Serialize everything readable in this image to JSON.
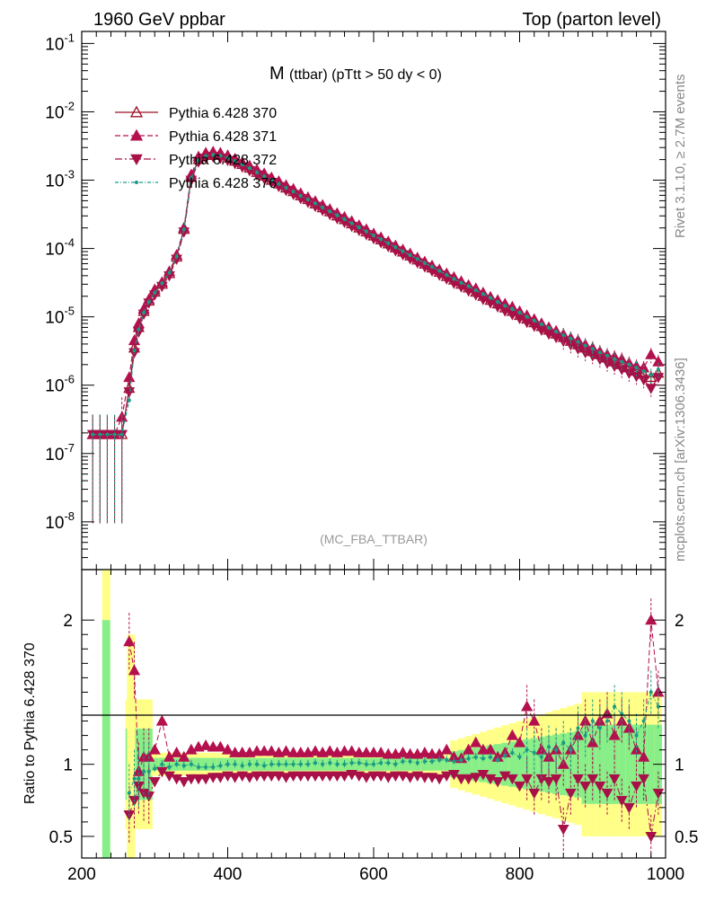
{
  "header": {
    "left": "1960 GeV ppbar",
    "right": "Top (parton level)"
  },
  "side": {
    "rivet": "Rivet 3.1.10, ≥ 2.7M events",
    "mcplots": "mcplots.cern.ch [arXiv:1306.3436]"
  },
  "plot_title": {
    "main": "M",
    "sub": "(ttbar) (pTtt > 50 dy < 0)"
  },
  "watermark": "(MC_FBA_TTBAR)",
  "ratio_ylabel": "Ratio to Pythia 6.428 370",
  "colors": {
    "s370": "#9b1025",
    "s371": "#b4104e",
    "s372": "#a81048",
    "s376": "#1a9a86",
    "band_yellow": "#ffff88",
    "band_green": "#88ee88"
  },
  "chart_data": [
    {
      "type": "line",
      "yscale": "log",
      "xlim": [
        200,
        1000
      ],
      "ylim": [
        2e-09,
        0.15
      ],
      "yticks": [
        "10^-8",
        "10^-7",
        "10^-6",
        "10^-5",
        "10^-4",
        "10^-3",
        "10^-2",
        "10^-1"
      ],
      "x": [
        215,
        225,
        235,
        245,
        255,
        265,
        272,
        278,
        285,
        292,
        300,
        310,
        320,
        330,
        340,
        350,
        360,
        370,
        380,
        390,
        400,
        410,
        420,
        430,
        440,
        450,
        460,
        470,
        480,
        490,
        500,
        510,
        520,
        530,
        540,
        550,
        560,
        570,
        580,
        590,
        600,
        610,
        620,
        630,
        640,
        650,
        660,
        670,
        680,
        690,
        700,
        710,
        720,
        730,
        740,
        750,
        760,
        770,
        780,
        790,
        800,
        810,
        820,
        830,
        840,
        850,
        860,
        870,
        880,
        890,
        900,
        910,
        920,
        930,
        940,
        950,
        960,
        970,
        980,
        990
      ],
      "series": [
        {
          "name": "Pythia 6.428 370",
          "values": [
            1.9e-07,
            1.9e-07,
            1.9e-07,
            1.9e-07,
            1.9e-07,
            9e-07,
            3.5e-06,
            7e-06,
            1.2e-05,
            1.7e-05,
            2.3e-05,
            3e-05,
            4.3e-05,
            7.5e-05,
            0.00019,
            0.0011,
            0.002,
            0.0023,
            0.0024,
            0.0023,
            0.0021,
            0.0019,
            0.0017,
            0.0015,
            0.0013,
            0.00115,
            0.001,
            0.00088,
            0.00077,
            0.00068,
            0.00059,
            0.00052,
            0.00045,
            0.000395,
            0.000345,
            0.0003,
            0.000265,
            0.00023,
            0.0002,
            0.000175,
            0.000153,
            0.000134,
            0.000117,
            0.000102,
            8.9e-05,
            7.8e-05,
            6.8e-05,
            5.9e-05,
            5.2e-05,
            4.5e-05,
            3.9e-05,
            3.45e-05,
            3e-05,
            2.65e-05,
            2.3e-05,
            2e-05,
            1.75e-05,
            1.55e-05,
            1.35e-05,
            1.2e-05,
            1.05e-05,
            9.3e-06,
            8.2e-06,
            7.2e-06,
            6.4e-06,
            5.6e-06,
            5e-06,
            4.4e-06,
            3.9e-06,
            3.5e-06,
            3.1e-06,
            2.8e-06,
            2.5e-06,
            2.2e-06,
            2e-06,
            1.8e-06,
            1.6e-06,
            1.45e-06,
            1.3e-06,
            1.5e-06
          ]
        },
        {
          "name": "Pythia 6.428 371",
          "values": [
            1.9e-07,
            1.9e-07,
            1.9e-07,
            1.9e-07,
            3.4e-07,
            1.3e-06,
            4.5e-06,
            8e-06,
            1.3e-05,
            1.8e-05,
            2.5e-05,
            3.2e-05,
            4.6e-05,
            8e-05,
            0.0002,
            0.0012,
            0.0022,
            0.0025,
            0.0026,
            0.0025,
            0.0023,
            0.00205,
            0.00183,
            0.00162,
            0.00142,
            0.00125,
            0.00109,
            0.00096,
            0.00084,
            0.00074,
            0.00064,
            0.00056,
            0.00049,
            0.00043,
            0.000375,
            0.000327,
            0.000288,
            0.00025,
            0.000218,
            0.00019,
            0.000165,
            0.000145,
            0.000126,
            0.00011,
            9.6e-05,
            8.4e-05,
            7.3e-05,
            6.4e-05,
            5.6e-05,
            4.9e-05,
            4.3e-05,
            3.8e-05,
            3.3e-05,
            2.9e-05,
            2.6e-05,
            2.25e-05,
            1.95e-05,
            1.75e-05,
            1.55e-05,
            1.4e-05,
            1.2e-05,
            1.05e-05,
            9.2e-06,
            8e-06,
            7e-06,
            6.2e-06,
            5.5e-06,
            4.9e-06,
            4.5e-06,
            3.9e-06,
            3.5e-06,
            3.1e-06,
            2.8e-06,
            2.6e-06,
            2.4e-06,
            2.1e-06,
            1.9e-06,
            1.8e-06,
            2.8e-06,
            2.2e-06
          ]
        },
        {
          "name": "Pythia 6.428 372",
          "values": [
            1.9e-07,
            1.9e-07,
            1.9e-07,
            1.9e-07,
            1.9e-07,
            8e-07,
            3e-06,
            6e-06,
            1.1e-05,
            1.6e-05,
            2.1e-05,
            2.8e-05,
            4e-05,
            7e-05,
            0.000175,
            0.001,
            0.00185,
            0.0021,
            0.0022,
            0.0021,
            0.00195,
            0.00175,
            0.00156,
            0.00138,
            0.0012,
            0.00106,
            0.00093,
            0.00081,
            0.00071,
            0.00062,
            0.00054,
            0.000475,
            0.000415,
            0.000362,
            0.000315,
            0.000275,
            0.000242,
            0.000211,
            0.000184,
            0.00016,
            0.00014,
            0.000122,
            0.000107,
            9.3e-05,
            8.1e-05,
            7.1e-05,
            6.2e-05,
            5.4e-05,
            4.7e-05,
            4.1e-05,
            3.6e-05,
            3.1e-05,
            2.75e-05,
            2.4e-05,
            2.1e-05,
            1.8e-05,
            1.6e-05,
            1.4e-05,
            1.22e-05,
            1.08e-05,
            9.5e-06,
            8.3e-06,
            7.3e-06,
            6.4e-06,
            5.6e-06,
            5e-06,
            4.4e-06,
            3.9e-06,
            3.4e-06,
            3e-06,
            2.7e-06,
            2.4e-06,
            2.1e-06,
            1.9e-06,
            1.7e-06,
            1.5e-06,
            1.35e-06,
            1.2e-06,
            9e-07,
            1.3e-06
          ]
        },
        {
          "name": "Pythia 6.428 376",
          "values": [
            1.9e-07,
            1.9e-07,
            1.9e-07,
            1.9e-07,
            1.9e-07,
            6e-07,
            3.2e-06,
            6.5e-06,
            1.15e-05,
            1.65e-05,
            2.25e-05,
            3.1e-05,
            4.4e-05,
            7.6e-05,
            0.00019,
            0.00108,
            0.00195,
            0.00225,
            0.00235,
            0.00228,
            0.00212,
            0.0019,
            0.0017,
            0.0015,
            0.0013,
            0.00114,
            0.001,
            0.00088,
            0.00077,
            0.00068,
            0.00059,
            0.00052,
            0.000455,
            0.000398,
            0.000348,
            0.000305,
            0.000268,
            0.000233,
            0.000203,
            0.000177,
            0.000155,
            0.000136,
            0.000119,
            0.000104,
            9.1e-05,
            8e-05,
            7e-05,
            6.1e-05,
            5.4e-05,
            4.7e-05,
            4.1e-05,
            3.6e-05,
            3.15e-05,
            2.8e-05,
            2.45e-05,
            2.15e-05,
            1.9e-05,
            1.65e-05,
            1.45e-05,
            1.3e-05,
            1.15e-05,
            1e-05,
            8.8e-06,
            7.8e-06,
            6.9e-06,
            6.1e-06,
            5.4e-06,
            4.8e-06,
            4.3e-06,
            3.8e-06,
            3.4e-06,
            3e-06,
            2.7e-06,
            2.4e-06,
            2.2e-06,
            2e-06,
            1.8e-06,
            1.6e-06,
            1.4e-06,
            1.7e-06
          ]
        }
      ]
    },
    {
      "type": "line",
      "xlim": [
        200,
        1000
      ],
      "ylim": [
        0.35,
        2.35
      ],
      "xticks": [
        "200",
        "400",
        "600",
        "800",
        "1000"
      ],
      "yticks": [
        "0.5",
        "1",
        "2"
      ],
      "ylabel": "Ratio to Pythia 6.428 370",
      "x": [
        265,
        272,
        278,
        285,
        292,
        300,
        310,
        320,
        330,
        340,
        350,
        360,
        370,
        380,
        390,
        400,
        410,
        420,
        430,
        440,
        450,
        460,
        470,
        480,
        490,
        500,
        510,
        520,
        530,
        540,
        550,
        560,
        570,
        580,
        590,
        600,
        610,
        620,
        630,
        640,
        650,
        660,
        670,
        680,
        690,
        700,
        710,
        720,
        730,
        740,
        750,
        760,
        770,
        780,
        790,
        800,
        810,
        820,
        830,
        840,
        850,
        860,
        870,
        880,
        890,
        900,
        910,
        920,
        930,
        940,
        950,
        960,
        970,
        980,
        990
      ],
      "series": [
        {
          "name": "Pythia 6.428 371",
          "values": [
            1.85,
            1.65,
            0.95,
            1.05,
            1.05,
            1.1,
            1.3,
            1.05,
            1.08,
            1.05,
            1.1,
            1.12,
            1.13,
            1.12,
            1.12,
            1.1,
            1.08,
            1.08,
            1.08,
            1.09,
            1.09,
            1.09,
            1.08,
            1.09,
            1.08,
            1.08,
            1.08,
            1.09,
            1.08,
            1.09,
            1.08,
            1.09,
            1.09,
            1.08,
            1.08,
            1.08,
            1.08,
            1.07,
            1.07,
            1.08,
            1.07,
            1.07,
            1.08,
            1.07,
            1.07,
            1.1,
            1.05,
            1.04,
            1.1,
            1.15,
            1.1,
            1.1,
            1.05,
            1.08,
            1.2,
            1.15,
            1.4,
            1.3,
            1.1,
            1.05,
            1.1,
            1.0,
            1.1,
            1.2,
            1.3,
            1.15,
            1.3,
            1.35,
            1.2,
            1.3,
            1.25,
            1.1,
            1.05,
            2.0,
            1.5
          ]
        },
        {
          "name": "Pythia 6.428 372",
          "values": [
            0.65,
            0.75,
            0.85,
            0.8,
            0.78,
            0.88,
            0.95,
            0.92,
            0.9,
            0.88,
            0.9,
            0.9,
            0.9,
            0.91,
            0.91,
            0.92,
            0.91,
            0.92,
            0.91,
            0.92,
            0.92,
            0.92,
            0.92,
            0.91,
            0.92,
            0.92,
            0.92,
            0.92,
            0.92,
            0.92,
            0.92,
            0.92,
            0.93,
            0.92,
            0.91,
            0.92,
            0.92,
            0.91,
            0.92,
            0.92,
            0.91,
            0.92,
            0.91,
            0.91,
            0.9,
            0.92,
            0.93,
            0.9,
            0.9,
            0.91,
            0.93,
            0.9,
            0.88,
            0.92,
            0.9,
            0.85,
            0.9,
            0.8,
            0.9,
            0.88,
            0.9,
            0.55,
            0.8,
            0.9,
            0.85,
            0.9,
            0.85,
            0.8,
            0.9,
            0.75,
            0.7,
            0.85,
            0.9,
            0.5,
            0.8
          ]
        },
        {
          "name": "Pythia 6.428 376",
          "values": [
            0.8,
            0.9,
            0.9,
            0.95,
            0.95,
            0.97,
            1.0,
            0.98,
            1.0,
            0.99,
            1.0,
            0.98,
            0.98,
            0.98,
            0.99,
            1.0,
            1.0,
            0.99,
            1.0,
            1.0,
            0.99,
            1.0,
            1.0,
            1.0,
            1.0,
            1.0,
            1.0,
            1.01,
            1.0,
            1.01,
            1.0,
            1.0,
            1.01,
            1.01,
            1.0,
            1.0,
            1.01,
            1.01,
            1.0,
            1.02,
            1.02,
            1.01,
            1.02,
            1.02,
            1.03,
            1.03,
            1.02,
            1.03,
            1.04,
            1.05,
            1.04,
            1.05,
            1.03,
            1.06,
            1.08,
            1.05,
            1.1,
            1.08,
            1.05,
            1.12,
            1.1,
            1.15,
            1.1,
            1.25,
            1.2,
            1.3,
            1.25,
            1.3,
            1.4,
            1.35,
            1.3,
            1.2,
            1.3,
            1.5,
            1.4
          ]
        }
      ]
    }
  ],
  "legend": [
    {
      "label": "Pythia 6.428 370",
      "color": "#9b1025",
      "marker": "open-triangle-up",
      "dash": ""
    },
    {
      "label": "Pythia 6.428 371",
      "color": "#b4104e",
      "marker": "triangle-up",
      "dash": "6,3"
    },
    {
      "label": "Pythia 6.428 372",
      "color": "#a81048",
      "marker": "triangle-down",
      "dash": "8,3,2,3"
    },
    {
      "label": "Pythia 6.428 376",
      "color": "#1a9a86",
      "marker": "dot",
      "dash": "4,2,1,2"
    }
  ]
}
